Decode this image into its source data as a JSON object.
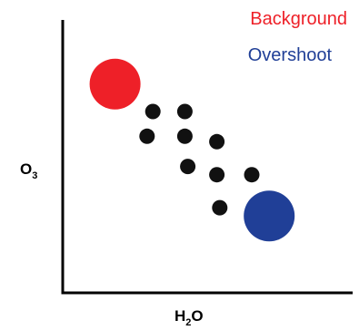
{
  "chart_data": {
    "type": "scatter",
    "title": "",
    "xlabel": {
      "base": "H",
      "sub": "2",
      "rest": "O"
    },
    "ylabel": {
      "base": "O",
      "sub": "3"
    },
    "xlim": [
      0,
      10
    ],
    "ylim": [
      0,
      10
    ],
    "grid": false,
    "legend_position": "top-right",
    "series": [
      {
        "name": "Background",
        "color": "#ee2028",
        "marker": "large-circle",
        "points": [
          {
            "x": 1.8,
            "y": 7.6
          }
        ]
      },
      {
        "name": "",
        "color": "#111111",
        "marker": "small-dot",
        "points": [
          {
            "x": 3.1,
            "y": 6.6
          },
          {
            "x": 4.2,
            "y": 6.6
          },
          {
            "x": 2.9,
            "y": 5.7
          },
          {
            "x": 4.2,
            "y": 5.7
          },
          {
            "x": 5.3,
            "y": 5.5
          },
          {
            "x": 4.3,
            "y": 4.6
          },
          {
            "x": 5.3,
            "y": 4.3
          },
          {
            "x": 6.5,
            "y": 4.3
          },
          {
            "x": 5.4,
            "y": 3.1
          }
        ]
      },
      {
        "name": "Overshoot",
        "color": "#203f97",
        "marker": "large-circle",
        "points": [
          {
            "x": 7.1,
            "y": 2.8
          }
        ]
      }
    ]
  }
}
